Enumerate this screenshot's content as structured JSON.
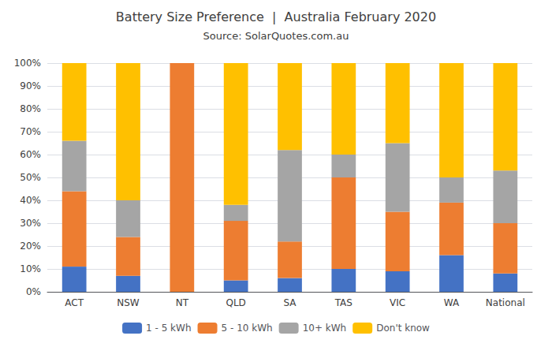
{
  "chart_data": {
    "type": "bar",
    "title": "Battery Size Preference  |  Australia February 2020",
    "subtitle": "Source: SolarQuotes.com.au",
    "categories": [
      "ACT",
      "NSW",
      "NT",
      "QLD",
      "SA",
      "TAS",
      "VIC",
      "WA",
      "National"
    ],
    "series": [
      {
        "name": "1 - 5 kWh",
        "color": "#4472C4",
        "values": [
          11,
          7,
          0,
          5,
          6,
          10,
          9,
          16,
          8
        ]
      },
      {
        "name": "5 - 10 kWh",
        "color": "#ED7D31",
        "values": [
          33,
          17,
          100,
          26,
          16,
          40,
          26,
          23,
          22
        ]
      },
      {
        "name": "10+ kWh",
        "color": "#A5A5A5",
        "values": [
          22,
          16,
          0,
          7,
          40,
          10,
          30,
          11,
          23
        ]
      },
      {
        "name": "Don't know",
        "color": "#FFC000",
        "values": [
          34,
          60,
          0,
          62,
          38,
          40,
          35,
          50,
          47
        ]
      }
    ],
    "stacked": true,
    "ylim": [
      0,
      100
    ],
    "yticks": [
      {
        "value": 0,
        "label": "0%"
      },
      {
        "value": 10,
        "label": "10%"
      },
      {
        "value": 20,
        "label": "20%"
      },
      {
        "value": 30,
        "label": "30%"
      },
      {
        "value": 40,
        "label": "40%"
      },
      {
        "value": 50,
        "label": "50%"
      },
      {
        "value": 60,
        "label": "60%"
      },
      {
        "value": 70,
        "label": "70%"
      },
      {
        "value": 80,
        "label": "80%"
      },
      {
        "value": 90,
        "label": "90%"
      },
      {
        "value": 100,
        "label": "100%"
      }
    ],
    "grid": true,
    "legend": "bottom"
  }
}
